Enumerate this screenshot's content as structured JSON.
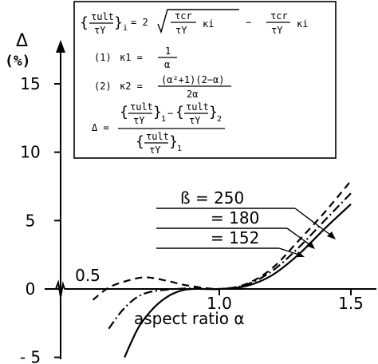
{
  "chart_data": {
    "type": "line",
    "ylabel": "Δ",
    "yunit": "(%)",
    "xlabel": "aspect ratio α",
    "xlim": [
      0.3,
      1.6
    ],
    "ylim": [
      -5,
      17
    ],
    "xticks": [
      {
        "value": 0.5,
        "label": "0.5"
      },
      {
        "value": 1.0,
        "label": "1.0"
      },
      {
        "value": 1.5,
        "label": "1.5"
      }
    ],
    "yticks": [
      {
        "value": 15,
        "label": "15"
      },
      {
        "value": 10,
        "label": "10"
      },
      {
        "value": 5,
        "label": "5"
      },
      {
        "value": 0,
        "label": "0"
      },
      {
        "value": -5,
        "label": "- 5"
      }
    ],
    "series": [
      {
        "name": "ß = 250",
        "style": "dashed",
        "points": [
          [
            0.52,
            -0.8
          ],
          [
            0.58,
            0.1
          ],
          [
            0.65,
            0.6
          ],
          [
            0.72,
            0.85
          ],
          [
            0.8,
            0.6
          ],
          [
            0.88,
            0.25
          ],
          [
            1.0,
            0.0
          ],
          [
            1.1,
            0.35
          ],
          [
            1.2,
            1.5
          ],
          [
            1.3,
            3.5
          ],
          [
            1.4,
            5.6
          ],
          [
            1.5,
            7.9
          ]
        ]
      },
      {
        "name": "= 180",
        "style": "dash-dot",
        "points": [
          [
            0.58,
            -2.9
          ],
          [
            0.63,
            -1.6
          ],
          [
            0.68,
            -0.7
          ],
          [
            0.73,
            -0.25
          ],
          [
            0.8,
            -0.05
          ],
          [
            0.9,
            0.05
          ],
          [
            1.0,
            0.0
          ],
          [
            1.1,
            0.3
          ],
          [
            1.2,
            1.3
          ],
          [
            1.3,
            3.0
          ],
          [
            1.4,
            5.0
          ],
          [
            1.5,
            7.0
          ]
        ]
      },
      {
        "name": "= 152",
        "style": "solid",
        "points": [
          [
            0.64,
            -5.0
          ],
          [
            0.67,
            -3.7
          ],
          [
            0.7,
            -2.6
          ],
          [
            0.75,
            -1.4
          ],
          [
            0.8,
            -0.6
          ],
          [
            0.85,
            -0.15
          ],
          [
            0.9,
            0.0
          ],
          [
            1.0,
            0.0
          ],
          [
            1.1,
            0.2
          ],
          [
            1.2,
            1.0
          ],
          [
            1.3,
            2.5
          ],
          [
            1.4,
            4.4
          ],
          [
            1.5,
            6.2
          ]
        ]
      }
    ],
    "labels": [
      "ß = 250",
      "= 180",
      "= 152"
    ]
  },
  "formulas": {
    "main_lhs_num": "τult",
    "main_lhs_den": "τY",
    "main_lhs_sub": "i",
    "main_eq": "= 2",
    "main_rad_num": "τcr",
    "main_rad_den": "τY",
    "main_rad_kappa": "κi",
    "main_minus": "−",
    "main_tail_num": "τcr",
    "main_tail_den": "τY",
    "main_tail_kappa": "κi",
    "k1_tag": "(1)",
    "k1_lhs": "κ1 =",
    "k1_num": "1",
    "k1_den": "α",
    "k2_tag": "(2)",
    "k2_lhs": "κ2 =",
    "k2_num": "(α²+1)(2−α)",
    "k2_den": "2α",
    "delta_lhs": "Δ =",
    "d_t1_num": "τult",
    "d_t1_den": "τY",
    "d_t1_sub": "1",
    "d_mid": "−",
    "d_t2_num": "τult",
    "d_t2_den": "τY",
    "d_t2_sub": "2",
    "d_den_num": "τult",
    "d_den_den": "τY",
    "d_den_sub": "1"
  }
}
